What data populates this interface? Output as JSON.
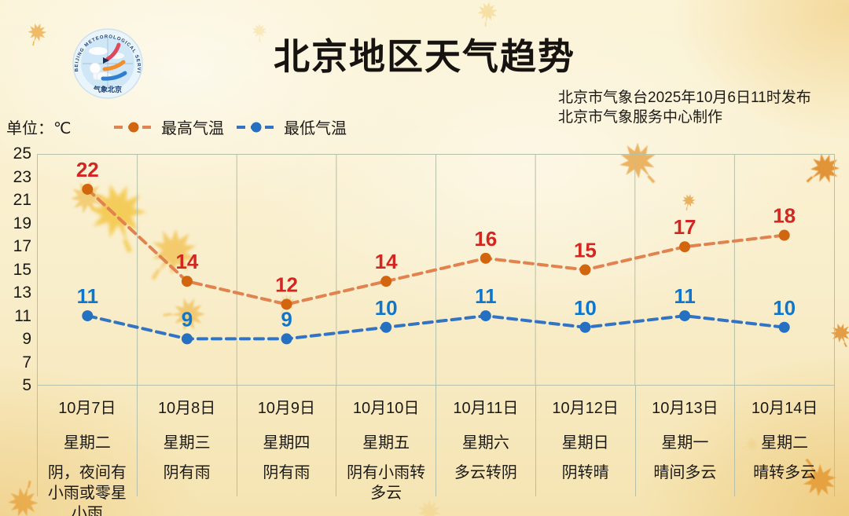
{
  "title": "北京地区天气趋势",
  "publisher": {
    "line1": "北京市气象台2025年10月6日11时发布",
    "line2": "北京市气象服务中心制作"
  },
  "unit_label": "单位：℃",
  "legend": {
    "high_label": "最高气温",
    "low_label": "最低气温"
  },
  "logo": {
    "arc_text": "BEIJING METEOROLOGICAL SERVICE",
    "bottom_text": "气象北京"
  },
  "colors": {
    "title_text": "#171310",
    "high_line": "#e2824e",
    "high_point": "#d2660e",
    "high_label": "#d42620",
    "low_line": "#3273c4",
    "low_point": "#2670c2",
    "low_label": "#0e76cc",
    "grid": "#b5bfa9",
    "background": "#f9eecb"
  },
  "chart_data": {
    "type": "line",
    "line_style": "dashed",
    "grid": "vertical-only",
    "legend_position": "top-left",
    "title": "北京地区天气趋势",
    "ylabel": "单位：℃",
    "ylim": [
      5,
      25
    ],
    "yticks": [
      25,
      23,
      21,
      19,
      17,
      15,
      13,
      11,
      9,
      7,
      5
    ],
    "categories": [
      "10月7日",
      "10月8日",
      "10月9日",
      "10月10日",
      "10月11日",
      "10月12日",
      "10月13日",
      "10月14日"
    ],
    "weekdays": [
      "星期二",
      "星期三",
      "星期四",
      "星期五",
      "星期六",
      "星期日",
      "星期一",
      "星期二"
    ],
    "weather": [
      "阴，夜间有小雨或零星小雨",
      "阴有雨",
      "阴有雨",
      "阴有小雨转多云",
      "多云转阴",
      "阴转晴",
      "晴间多云",
      "晴转多云"
    ],
    "series": [
      {
        "name": "最高气温",
        "values": [
          22,
          14,
          12,
          14,
          16,
          15,
          17,
          18
        ]
      },
      {
        "name": "最低气温",
        "values": [
          11,
          9,
          9,
          10,
          11,
          10,
          11,
          10
        ]
      }
    ]
  }
}
